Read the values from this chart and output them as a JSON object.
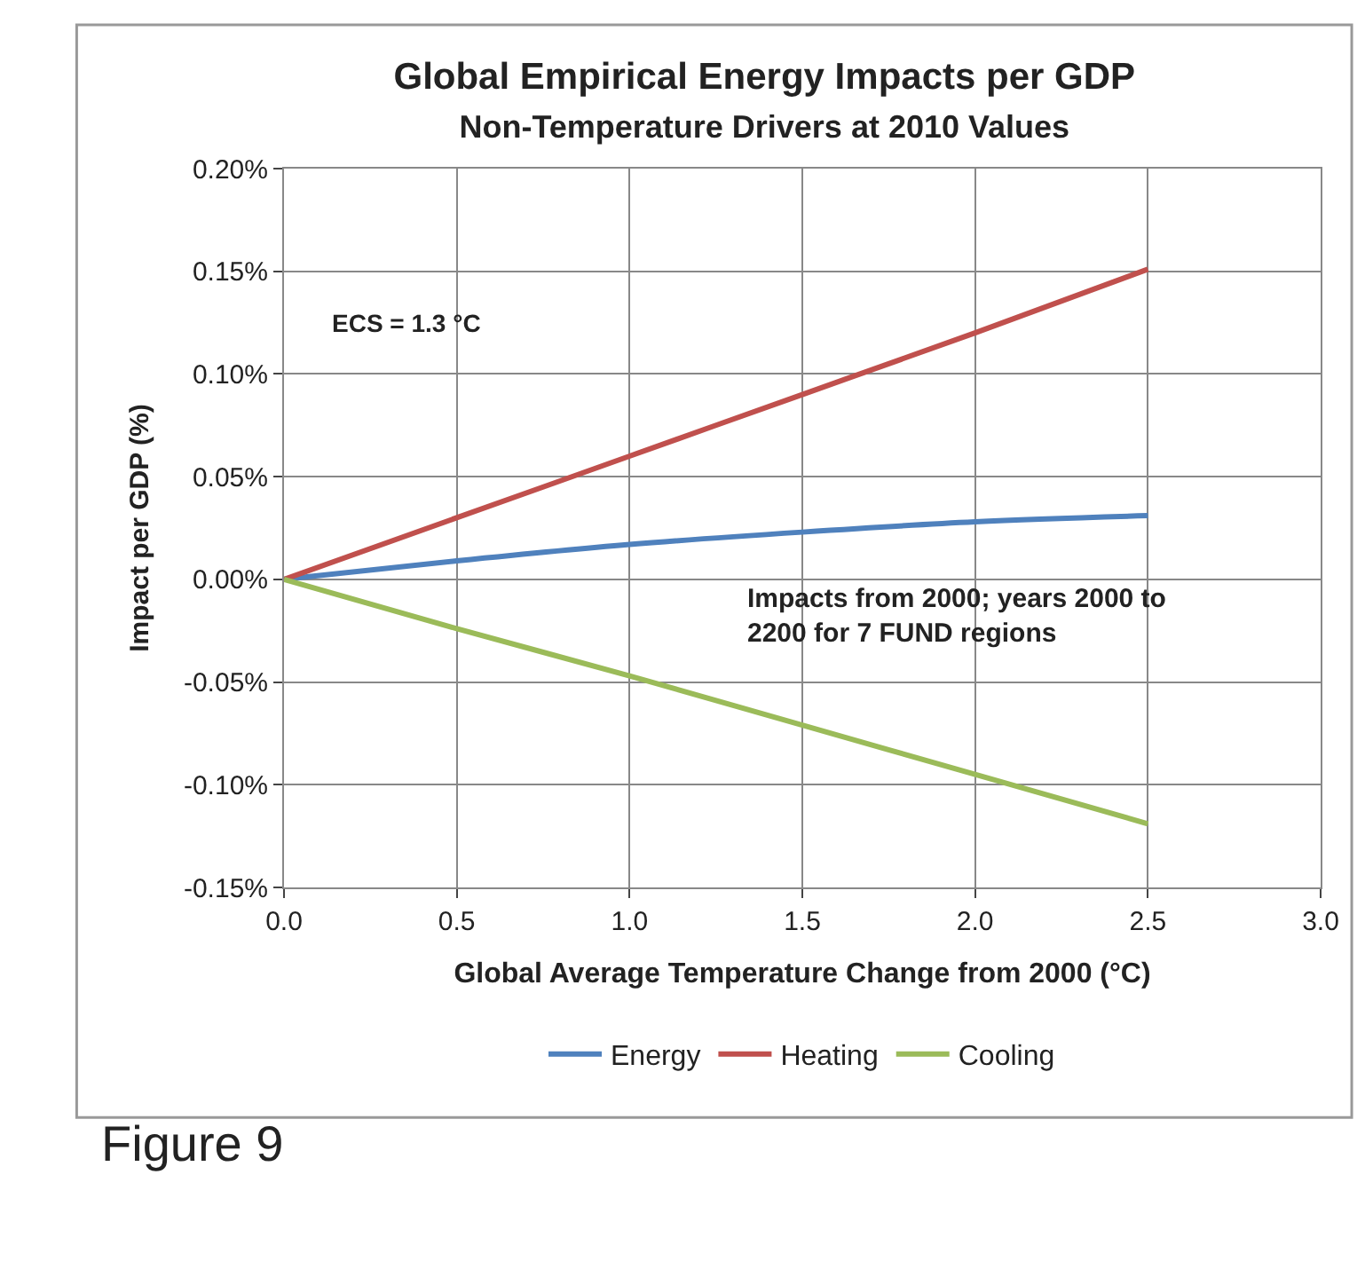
{
  "chart_data": {
    "type": "line",
    "title": "Global Empirical Energy Impacts per GDP",
    "subtitle": "Non-Temperature Drivers at 2010 Values",
    "xlabel": "Global Average Temperature Change from 2000 (°C)",
    "ylabel": "Impact per GDP (%)",
    "x": [
      0,
      0.5,
      1.0,
      1.5,
      2.0,
      2.5
    ],
    "series": [
      {
        "name": "Energy",
        "color": "#4f81bd",
        "values": [
          0,
          0.009,
          0.017,
          0.023,
          0.028,
          0.031
        ]
      },
      {
        "name": "Heating",
        "color": "#c0504d",
        "values": [
          0,
          0.03,
          0.06,
          0.09,
          0.12,
          0.151
        ]
      },
      {
        "name": "Cooling",
        "color": "#9bbb59",
        "values": [
          0,
          -0.024,
          -0.047,
          -0.071,
          -0.095,
          -0.119
        ]
      }
    ],
    "xlim": [
      0,
      3.0
    ],
    "xticks": [
      {
        "value": 0,
        "label": "0.0"
      },
      0.5,
      {
        "value": 1,
        "label": "1.0"
      },
      1.5,
      {
        "value": 2,
        "label": "2.0"
      },
      2.5,
      {
        "value": 3,
        "label": "3.0"
      }
    ],
    "ylim": [
      -0.15,
      0.2
    ],
    "yticks": [
      {
        "value": -0.15,
        "label": "-0.15%"
      },
      {
        "value": -0.1,
        "label": "-0.10%"
      },
      {
        "value": -0.05,
        "label": "-0.05%"
      },
      {
        "value": 0,
        "label": "0.00%"
      },
      {
        "value": 0.05,
        "label": "0.05%"
      },
      {
        "value": 0.1,
        "label": "0.10%"
      },
      {
        "value": 0.15,
        "label": "0.15%"
      },
      {
        "value": 0.2,
        "label": "0.20%"
      }
    ],
    "annotations": [
      "ECS = 1.3 °C",
      "Impacts from 2000; years 2000 to\n2200 for 7 FUND regions",
      "Figure 9"
    ],
    "grid": true,
    "legend": "bottom",
    "marker": "none",
    "line_style": "solid"
  }
}
